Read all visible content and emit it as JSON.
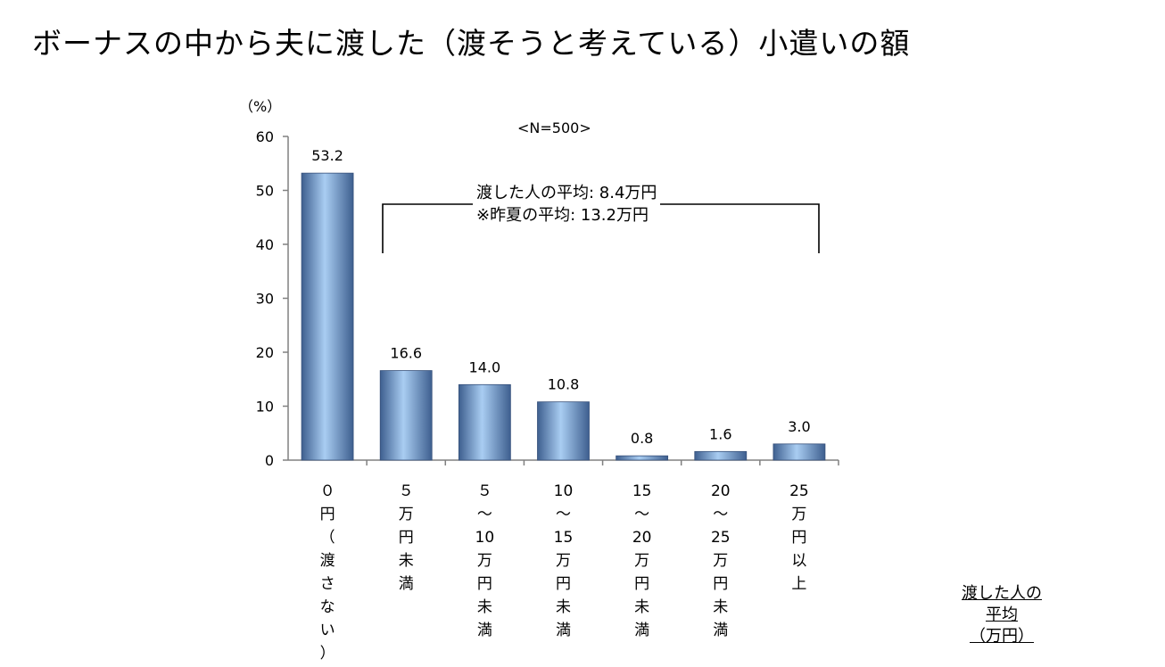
{
  "title": "ボーナスの中から夫に渡した（渡そうと考えている）小遣いの額",
  "chart_data": {
    "type": "bar",
    "unit_label": "（%）",
    "sample_label": "<N=500>",
    "categories": [
      [
        "０",
        "円",
        "（",
        "渡",
        "さ",
        "な",
        "い",
        "）"
      ],
      [
        "５",
        "万",
        "円",
        "未",
        "満"
      ],
      [
        "５",
        "～",
        "10",
        "万",
        "円",
        "未",
        "満"
      ],
      [
        "10",
        "～",
        "15",
        "万",
        "円",
        "未",
        "満"
      ],
      [
        "15",
        "～",
        "20",
        "万",
        "円",
        "未",
        "満"
      ],
      [
        "20",
        "～",
        "25",
        "万",
        "円",
        "未",
        "満"
      ],
      [
        "25",
        "万",
        "円",
        "以",
        "上"
      ]
    ],
    "values": [
      53.2,
      16.6,
      14.0,
      10.8,
      0.8,
      1.6,
      3.0
    ],
    "value_labels": [
      "53.2",
      "16.6",
      "14.0",
      "10.8",
      "0.8",
      "1.6",
      "3.0"
    ],
    "ylim": [
      0,
      60
    ],
    "yticks": [
      0,
      10,
      20,
      30,
      40,
      50,
      60
    ],
    "bar_color": "#8db4e2",
    "bar_edge_color": "#36507a",
    "annotation": {
      "line1": "渡した人の平均: 8.4万円",
      "line2": "※昨夏の平均: 13.2万円"
    },
    "side_label": [
      "渡した人の",
      "平均",
      "（万円）"
    ]
  }
}
